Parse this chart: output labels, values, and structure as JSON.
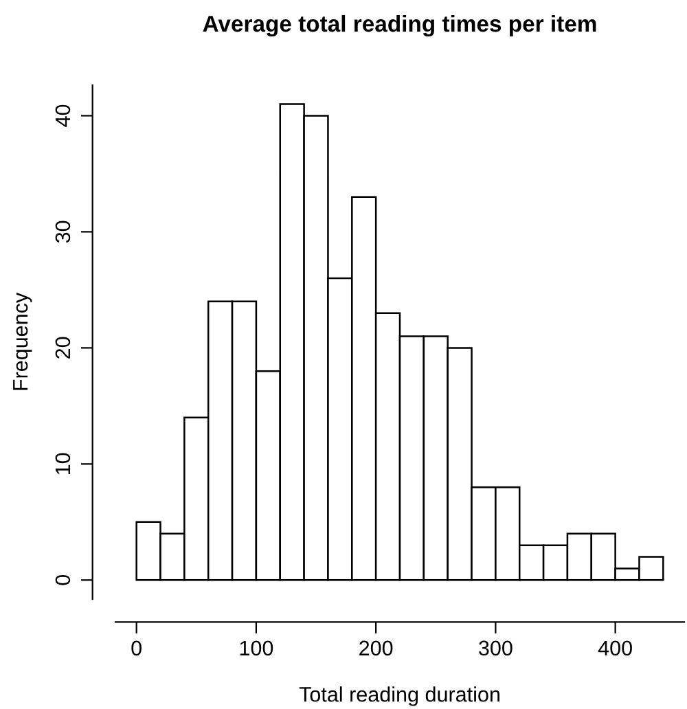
{
  "chart_data": {
    "type": "histogram",
    "title": "Average total reading times per item",
    "xlabel": "Total reading duration",
    "ylabel": "Frequency",
    "bins": [
      0,
      20,
      40,
      60,
      80,
      100,
      120,
      140,
      160,
      180,
      200,
      220,
      240,
      260,
      280,
      300,
      320,
      340,
      360,
      380,
      400,
      420,
      440
    ],
    "values": [
      5,
      4,
      14,
      24,
      24,
      18,
      41,
      40,
      26,
      33,
      23,
      21,
      21,
      20,
      8,
      8,
      3,
      3,
      4,
      4,
      1,
      2
    ],
    "color": "#ffffff",
    "xlim": [
      -17.6,
      457.6
    ],
    "ylim": [
      -1.64,
      42.64
    ],
    "xticks": [
      0,
      100,
      200,
      300,
      400
    ],
    "yticks": [
      0,
      10,
      20,
      30,
      40
    ],
    "grid": false
  }
}
